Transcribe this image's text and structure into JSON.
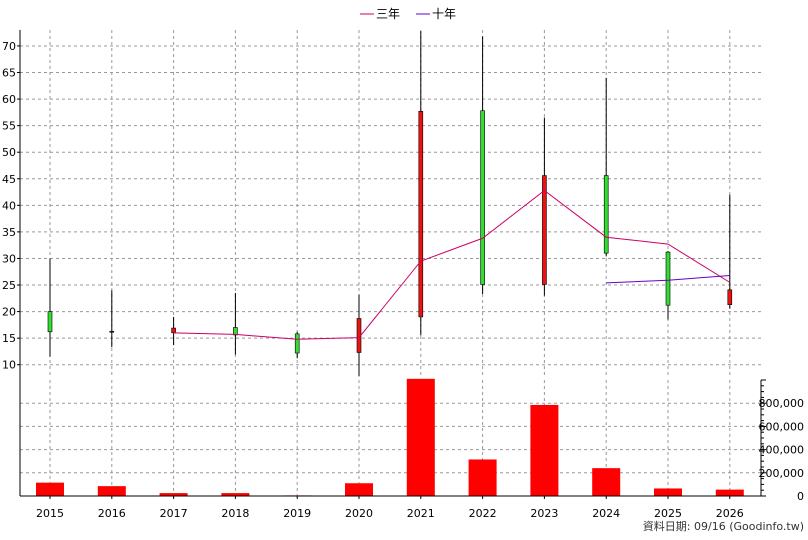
{
  "chart_data": {
    "type": "candlestick",
    "categories": [
      "2015",
      "2016",
      "2017",
      "2018",
      "2019",
      "2020",
      "2021",
      "2022",
      "2023",
      "2024",
      "2025",
      "2026"
    ],
    "price": {
      "ylim": [
        7.5,
        73
      ],
      "yticks": [
        10,
        15,
        20,
        25,
        30,
        35,
        40,
        45,
        50,
        55,
        60,
        65,
        70
      ],
      "candles": [
        {
          "open": 16.2,
          "close": 20.0,
          "high": 30.0,
          "low": 11.5
        },
        {
          "open": 16.3,
          "close": 16.2,
          "high": 24.0,
          "low": 13.3
        },
        {
          "open": 16.9,
          "close": 16.0,
          "high": 19.0,
          "low": 13.7
        },
        {
          "open": 15.6,
          "close": 17.0,
          "high": 23.5,
          "low": 11.9
        },
        {
          "open": 12.2,
          "close": 15.8,
          "high": 16.2,
          "low": 11.2
        },
        {
          "open": 18.7,
          "close": 12.3,
          "high": 23.2,
          "low": 7.8
        },
        {
          "open": 57.7,
          "close": 19.0,
          "high": 72.8,
          "low": 15.5
        },
        {
          "open": 25.1,
          "close": 57.8,
          "high": 71.8,
          "low": 23.3
        },
        {
          "open": 45.6,
          "close": 25.1,
          "high": 56.5,
          "low": 23.0
        },
        {
          "open": 31.0,
          "close": 45.6,
          "high": 64.0,
          "low": 30.4
        },
        {
          "open": 21.2,
          "close": 31.2,
          "high": 31.4,
          "low": 18.5
        },
        {
          "open": 24.1,
          "close": 21.3,
          "high": 42.0,
          "low": 20.6
        }
      ],
      "series": [
        {
          "name": "三年",
          "color": "#cc0066",
          "values": [
            null,
            null,
            16.0,
            15.7,
            14.8,
            15.1,
            29.5,
            33.8,
            42.8,
            34.0,
            32.7,
            25.5
          ]
        },
        {
          "name": "十年",
          "color": "#6600cc",
          "values": [
            null,
            null,
            null,
            null,
            null,
            null,
            null,
            null,
            null,
            25.4,
            25.9,
            26.8
          ]
        }
      ]
    },
    "volume": {
      "ylim": [
        0,
        1000000
      ],
      "yticks": [
        0,
        200000,
        400000,
        600000,
        800000
      ],
      "ytick_labels": [
        "0",
        "200,000",
        "400,000",
        "600,000",
        "800,000"
      ],
      "values": [
        115000,
        85000,
        25000,
        25000,
        5000,
        110000,
        1010000,
        315000,
        785000,
        240000,
        65000,
        55000
      ]
    },
    "colors": {
      "up": "#33dd33",
      "down": "#ee1111",
      "volume": "#ff0000",
      "grid": "#999999"
    }
  },
  "footer": "資料日期: 09/16  (Goodinfo.tw)"
}
